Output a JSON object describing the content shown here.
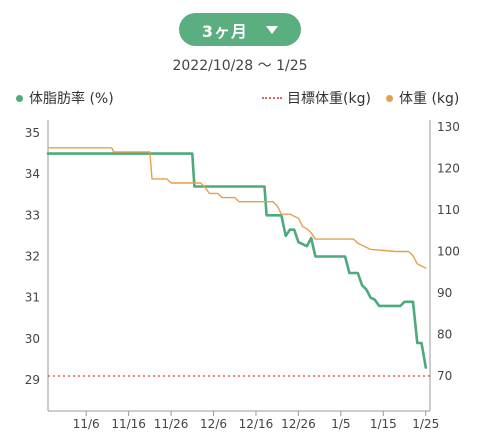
{
  "period_selector": {
    "label": "3ヶ月",
    "icon": "caret-down-icon"
  },
  "date_range": "2022/10/28 〜 1/25",
  "legend": {
    "body_fat": {
      "label": "体脂肪率 (%)",
      "color": "#4caa7c"
    },
    "target_weight": {
      "label": "目標体重(kg)",
      "color": "#e0635a"
    },
    "weight": {
      "label": "体重 (kg)",
      "color": "#e6a04a"
    }
  },
  "chart_data": {
    "type": "line",
    "x_ticks": [
      "11/6",
      "11/16",
      "11/26",
      "12/6",
      "12/16",
      "12/26",
      "1/5",
      "1/15",
      "1/25"
    ],
    "x_tick_days": [
      9,
      19,
      29,
      39,
      49,
      59,
      69,
      79,
      89
    ],
    "x_range_days": [
      0,
      90
    ],
    "y_left": {
      "label": "体脂肪率 (%)",
      "ticks": [
        29,
        30,
        31,
        32,
        33,
        34,
        35
      ],
      "range": [
        29,
        35.5
      ]
    },
    "y_right": {
      "label": "体重 (kg)",
      "ticks": [
        70,
        80,
        90,
        100,
        110,
        120,
        130
      ],
      "range": [
        70,
        130
      ]
    },
    "target_weight": 70,
    "series": [
      {
        "name": "体脂肪率 (%)",
        "axis": "left",
        "color": "#4caa7c",
        "points": [
          [
            0,
            34.5
          ],
          [
            34,
            34.5
          ],
          [
            34.5,
            33.7
          ],
          [
            51,
            33.7
          ],
          [
            51.5,
            33.0
          ],
          [
            55,
            33.0
          ],
          [
            56,
            32.5
          ],
          [
            57,
            32.65
          ],
          [
            58,
            32.65
          ],
          [
            59,
            32.35
          ],
          [
            60,
            32.3
          ],
          [
            61,
            32.25
          ],
          [
            62,
            32.45
          ],
          [
            63,
            32.0
          ],
          [
            70,
            32.0
          ],
          [
            71,
            31.6
          ],
          [
            73,
            31.6
          ],
          [
            74,
            31.3
          ],
          [
            75,
            31.2
          ],
          [
            76,
            31.0
          ],
          [
            77,
            30.95
          ],
          [
            78,
            30.8
          ],
          [
            83,
            30.8
          ],
          [
            84,
            30.9
          ],
          [
            86,
            30.9
          ],
          [
            87,
            29.9
          ],
          [
            88,
            29.9
          ],
          [
            89,
            29.3
          ]
        ]
      },
      {
        "name": "体重 (kg)",
        "axis": "right",
        "color": "#e6a04a",
        "points": [
          [
            0,
            125
          ],
          [
            15,
            125
          ],
          [
            15.5,
            124
          ],
          [
            24,
            124
          ],
          [
            24.5,
            117.5
          ],
          [
            28,
            117.5
          ],
          [
            29,
            116.5
          ],
          [
            36,
            116.5
          ],
          [
            37,
            115.5
          ],
          [
            38,
            114
          ],
          [
            40,
            114
          ],
          [
            41,
            113
          ],
          [
            44,
            113
          ],
          [
            45,
            112
          ],
          [
            53,
            112
          ],
          [
            54,
            111
          ],
          [
            55,
            109
          ],
          [
            57,
            109
          ],
          [
            58,
            108.5
          ],
          [
            59,
            108
          ],
          [
            60,
            106
          ],
          [
            61,
            105.5
          ],
          [
            62,
            104.5
          ],
          [
            63,
            103
          ],
          [
            72,
            103
          ],
          [
            73,
            102
          ],
          [
            76,
            100.5
          ],
          [
            82,
            100
          ],
          [
            85,
            100
          ],
          [
            86,
            99
          ],
          [
            87,
            97
          ],
          [
            88,
            96.5
          ],
          [
            89,
            96
          ]
        ]
      }
    ],
    "grid": false,
    "legend_position": "top"
  }
}
